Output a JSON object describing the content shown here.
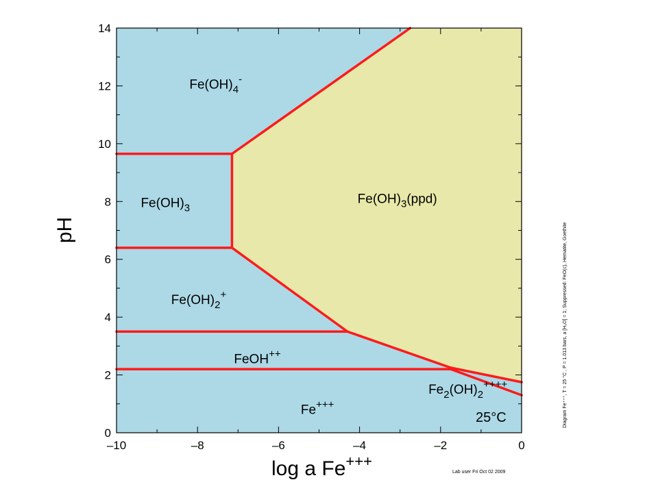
{
  "chart_data": {
    "type": "area",
    "xlabel": {
      "base": "log a Fe",
      "sup": "+++"
    },
    "ylabel": "pH",
    "xlim": [
      -10,
      0
    ],
    "ylim": [
      0,
      14
    ],
    "x_ticks": [
      -10,
      -8,
      -6,
      -4,
      -2,
      0
    ],
    "x_tick_labels": [
      "–10",
      "–8",
      "–6",
      "–4",
      "–2",
      "0"
    ],
    "y_ticks": [
      0,
      2,
      4,
      6,
      8,
      10,
      12,
      14
    ],
    "y_tick_labels": [
      "0",
      "2",
      "4",
      "6",
      "8",
      "10",
      "12",
      "14"
    ],
    "minor_x_step": 1,
    "minor_y_step": 1,
    "colors": {
      "aqueous": "#add8e6",
      "precipitate": "#e8e8aa",
      "boundary": "#ff1a1a"
    },
    "precipitate_region": [
      [
        -7.15,
        6.4
      ],
      [
        -4.3,
        3.5
      ],
      [
        -1.75,
        2.25
      ],
      [
        0,
        1.75
      ],
      [
        0,
        14
      ],
      [
        -2.75,
        14
      ],
      [
        -7.15,
        9.65
      ]
    ],
    "boundaries": [
      {
        "points": [
          [
            -10,
            9.65
          ],
          [
            -7.15,
            9.65
          ]
        ]
      },
      {
        "points": [
          [
            -10,
            6.4
          ],
          [
            -7.15,
            6.4
          ]
        ]
      },
      {
        "points": [
          [
            -7.15,
            6.4
          ],
          [
            -7.15,
            9.65
          ]
        ]
      },
      {
        "points": [
          [
            -7.15,
            9.65
          ],
          [
            -2.75,
            14
          ]
        ]
      },
      {
        "points": [
          [
            -7.15,
            6.4
          ],
          [
            -4.3,
            3.5
          ]
        ]
      },
      {
        "points": [
          [
            -10,
            3.5
          ],
          [
            -4.3,
            3.5
          ]
        ]
      },
      {
        "points": [
          [
            -4.3,
            3.5
          ],
          [
            -1.75,
            2.25
          ]
        ]
      },
      {
        "points": [
          [
            -10,
            2.2
          ],
          [
            -1.75,
            2.2
          ]
        ]
      },
      {
        "points": [
          [
            -1.75,
            2.25
          ],
          [
            0,
            1.75
          ]
        ]
      },
      {
        "points": [
          [
            -1.75,
            2.2
          ],
          [
            0,
            1.3
          ]
        ]
      }
    ],
    "regions": [
      {
        "parts": [
          {
            "t": "Fe(OH)"
          },
          {
            "t": "4",
            "sub": true
          },
          {
            "t": "-",
            "sup": true
          }
        ],
        "x": -8.2,
        "y": 11.9
      },
      {
        "parts": [
          {
            "t": "Fe(OH)"
          },
          {
            "t": "3",
            "sub": true
          }
        ],
        "x": -9.4,
        "y": 7.8
      },
      {
        "parts": [
          {
            "t": "Fe(OH)"
          },
          {
            "t": "3",
            "sub": true
          },
          {
            "t": "(ppd)"
          }
        ],
        "x": -4.05,
        "y": 7.95
      },
      {
        "parts": [
          {
            "t": "Fe(OH)"
          },
          {
            "t": "2",
            "sub": true
          },
          {
            "t": "+",
            "sup": true
          }
        ],
        "x": -8.65,
        "y": 4.45
      },
      {
        "parts": [
          {
            "t": "FeOH"
          },
          {
            "t": "++",
            "sup": true
          }
        ],
        "x": -7.1,
        "y": 2.4
      },
      {
        "parts": [
          {
            "t": "Fe"
          },
          {
            "t": "2",
            "sub": true
          },
          {
            "t": "(OH)"
          },
          {
            "t": "2",
            "sub": true
          },
          {
            "t": "++++",
            "sup": true
          }
        ],
        "x": -2.3,
        "y": 1.35
      },
      {
        "parts": [
          {
            "t": "Fe"
          },
          {
            "t": "+++",
            "sup": true
          }
        ],
        "x": -5.45,
        "y": 0.65
      }
    ],
    "annotations": {
      "temperature": "25°C",
      "conditions": "Diagram Fe⁺⁺⁺, T = 25 °C , P = 1.013 bars, a [H₂O] = 1; Suppressed: FeO(c), Hematite, Goethite",
      "footer": "Lab user Fri Oct 02 2009"
    }
  }
}
